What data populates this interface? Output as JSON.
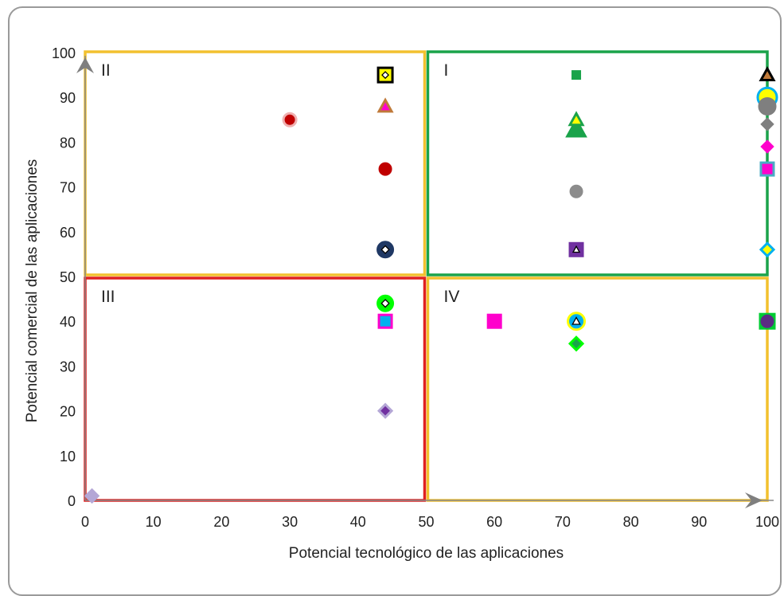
{
  "chart_data": {
    "type": "scatter",
    "title": "",
    "xlabel": "Potencial tecnológico de las aplicaciones",
    "ylabel": "Potencial comercial de las aplicaciones",
    "xlim": [
      0,
      100
    ],
    "ylim": [
      0,
      100
    ],
    "x_ticks": [
      "0",
      "10",
      "20",
      "30",
      "40",
      "50",
      "60",
      "70",
      "80",
      "90",
      "100"
    ],
    "y_ticks": [
      "0",
      "10",
      "20",
      "30",
      "40",
      "50",
      "60",
      "70",
      "80",
      "90",
      "100"
    ],
    "grid": false,
    "quadrants": [
      {
        "label": "II",
        "x": [
          0,
          50
        ],
        "y": [
          50,
          100
        ],
        "color": "#f2c12e"
      },
      {
        "label": "I",
        "x": [
          50,
          100
        ],
        "y": [
          50,
          100
        ],
        "color": "#1aa34a"
      },
      {
        "label": "III",
        "x": [
          0,
          50
        ],
        "y": [
          0,
          50
        ],
        "color": "#e02020"
      },
      {
        "label": "IV",
        "x": [
          50,
          100
        ],
        "y": [
          0,
          50
        ],
        "color": "#f2c12e"
      }
    ],
    "points": [
      {
        "x": 44,
        "y": 95,
        "shape": "square",
        "color": "#ffff00",
        "stroke": "#000000",
        "inner": "diamond"
      },
      {
        "x": 44,
        "y": 88,
        "shape": "triangle",
        "color": "#ff00cc",
        "stroke": "#c07a3a"
      },
      {
        "x": 30,
        "y": 85,
        "shape": "circle",
        "color": "#c00000",
        "stroke": "#f0b0b0"
      },
      {
        "x": 44,
        "y": 74,
        "shape": "circle",
        "color": "#c00000",
        "stroke": "#c00000"
      },
      {
        "x": 44,
        "y": 56,
        "shape": "circle",
        "color": "#1f3864",
        "stroke": "#1f3864",
        "inner": "diamond"
      },
      {
        "x": 72,
        "y": 95,
        "shape": "square",
        "color": "#1aa34a",
        "stroke": "#1aa34a"
      },
      {
        "x": 72,
        "y": 83,
        "shape": "triangle",
        "color": "#1aa34a",
        "stroke": "#1aa34a"
      },
      {
        "x": 72,
        "y": 85,
        "shape": "triangle",
        "color": "#ffff00",
        "stroke": "#1aa34a"
      },
      {
        "x": 72,
        "y": 69,
        "shape": "circle",
        "color": "#8c8c8c",
        "stroke": "#8c8c8c"
      },
      {
        "x": 72,
        "y": 56,
        "shape": "square",
        "color": "#7030a0",
        "stroke": "#7030a0",
        "inner": "triangle"
      },
      {
        "x": 100,
        "y": 95,
        "shape": "triangle",
        "color": "#c07a3a",
        "stroke": "#000000"
      },
      {
        "x": 100,
        "y": 90,
        "shape": "circle",
        "color": "#ffff00",
        "stroke": "#00b0f0"
      },
      {
        "x": 100,
        "y": 88,
        "shape": "circle",
        "color": "#7f7f7f",
        "stroke": "#7f7f7f"
      },
      {
        "x": 100,
        "y": 84,
        "shape": "diamond",
        "color": "#7f7f7f",
        "stroke": "#7f7f7f"
      },
      {
        "x": 100,
        "y": 79,
        "shape": "diamond",
        "color": "#ff00cc",
        "stroke": "#ff00cc"
      },
      {
        "x": 100,
        "y": 74,
        "shape": "square",
        "color": "#ff00cc",
        "stroke": "#4bacc6"
      },
      {
        "x": 100,
        "y": 56,
        "shape": "diamond",
        "color": "#ffff00",
        "stroke": "#00b0f0"
      },
      {
        "x": 44,
        "y": 44,
        "shape": "circle",
        "color": "#00ff00",
        "stroke": "#00ff00",
        "inner": "diamond"
      },
      {
        "x": 44,
        "y": 40,
        "shape": "square",
        "color": "#00b0f0",
        "stroke": "#ff00cc"
      },
      {
        "x": 44,
        "y": 20,
        "shape": "diamond",
        "color": "#7030a0",
        "stroke": "#b4a7d6"
      },
      {
        "x": 1,
        "y": 1,
        "shape": "diamond",
        "color": "#b4a7d6",
        "stroke": "#b4a7d6"
      },
      {
        "x": 60,
        "y": 40,
        "shape": "square",
        "color": "#ff00cc",
        "stroke": "#ff00cc"
      },
      {
        "x": 72,
        "y": 40,
        "shape": "circle",
        "color": "#00b0f0",
        "stroke": "#ffff00",
        "inner": "triangle"
      },
      {
        "x": 72,
        "y": 35,
        "shape": "diamond",
        "color": "#1aa34a",
        "stroke": "#00ff00"
      },
      {
        "x": 100,
        "y": 40,
        "shape": "square",
        "color": "#00cc33",
        "stroke": "#00cc33"
      },
      {
        "x": 100,
        "y": 40,
        "shape": "circle",
        "color": "#5b2c83",
        "stroke": "#5b2c83"
      }
    ]
  }
}
